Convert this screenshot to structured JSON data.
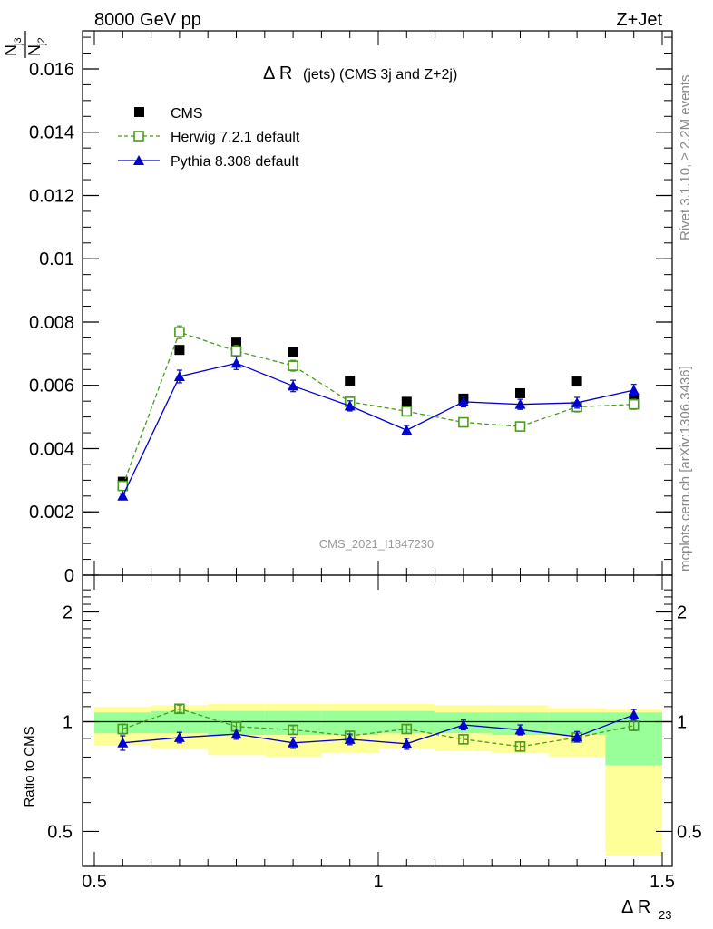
{
  "header": {
    "left": "8000 GeV pp",
    "right": "Z+Jet"
  },
  "side_text": {
    "rivet": "Rivet 3.1.10, ≥ 2.2M events",
    "mcplots": "mcplots.cern.ch [arXiv:1306.3436]"
  },
  "chart_data": [
    {
      "type": "scatter",
      "panel": "main",
      "title_main": "Δ R",
      "title_rest": "(jets) (CMS 3j and Z+2j)",
      "watermark": "CMS_2021_I1847230",
      "ylabel_num": "N",
      "ylabel_num_sub": "j3",
      "ylabel_den": "N",
      "ylabel_den_sub": "j2",
      "xlim": [
        0.5,
        1.5
      ],
      "ylim": [
        0,
        0.0172
      ],
      "yticks": [
        0,
        0.002,
        0.004,
        0.006,
        0.008,
        0.01,
        0.012,
        0.014,
        0.016
      ],
      "ytick_labels": [
        "0",
        "0.002",
        "0.004",
        "0.006",
        "0.008",
        "0.01",
        "0.012",
        "0.014",
        "0.016"
      ],
      "legend_position": "top-left",
      "x": [
        0.55,
        0.65,
        0.75,
        0.85,
        0.95,
        1.05,
        1.15,
        1.25,
        1.35,
        1.45
      ],
      "series": [
        {
          "name": "CMS",
          "color": "#000000",
          "marker": "square-filled",
          "line": "none",
          "values": [
            0.00295,
            0.00712,
            0.00735,
            0.00705,
            0.00615,
            0.00548,
            0.00558,
            0.00575,
            0.00612,
            0.00558
          ]
        },
        {
          "name": "Herwig 7.2.1 default",
          "color": "#4a9a1e",
          "marker": "square-open",
          "line": "dashed",
          "values": [
            0.00282,
            0.00768,
            0.00708,
            0.00662,
            0.00548,
            0.00518,
            0.00483,
            0.0047,
            0.00532,
            0.0054
          ],
          "errors": [
            8e-05,
            0.0002,
            0.00018,
            0.00017,
            0.00015,
            0.00015,
            0.00014,
            0.00014,
            0.00016,
            0.00016
          ]
        },
        {
          "name": "Pythia 8.308 default",
          "color": "#0000d0",
          "marker": "triangle-filled",
          "line": "solid",
          "values": [
            0.0025,
            0.00628,
            0.0067,
            0.00598,
            0.00535,
            0.00458,
            0.00548,
            0.0054,
            0.00545,
            0.00585
          ],
          "errors": [
            8e-05,
            0.0002,
            0.0002,
            0.00018,
            0.00016,
            0.00015,
            0.00016,
            0.00016,
            0.00017,
            0.00018
          ]
        }
      ]
    },
    {
      "type": "scatter",
      "panel": "ratio",
      "ylabel": "Ratio to CMS",
      "xlabel": "Δ R",
      "xlabel_sub": "23",
      "xlim": [
        0.5,
        1.5
      ],
      "ylim": [
        0.37,
        2.35
      ],
      "ytick_labels_left": [
        {
          "v": 0.5,
          "t": "0.5"
        },
        {
          "v": 1,
          "t": "1"
        },
        {
          "v": 2,
          "t": "2"
        }
      ],
      "ytick_labels_right": [
        {
          "v": 0.5,
          "t": "0.5"
        },
        {
          "v": 1,
          "t": "1"
        },
        {
          "v": 2,
          "t": "2"
        }
      ],
      "xtick_labels": [
        {
          "v": 0.5,
          "t": "0.5"
        },
        {
          "v": 1,
          "t": "1"
        },
        {
          "v": 1.5,
          "t": "1.5"
        }
      ],
      "reference_line": 1,
      "band_colors": {
        "inner": "#99ff99",
        "outer": "#ffff99"
      },
      "bins": [
        {
          "lo": 0.5,
          "hi": 0.6,
          "inner": [
            0.93,
            1.06
          ],
          "outer": [
            0.86,
            1.1
          ]
        },
        {
          "lo": 0.6,
          "hi": 0.7,
          "inner": [
            0.93,
            1.07
          ],
          "outer": [
            0.84,
            1.11
          ]
        },
        {
          "lo": 0.7,
          "hi": 0.8,
          "inner": [
            0.92,
            1.07
          ],
          "outer": [
            0.81,
            1.12
          ]
        },
        {
          "lo": 0.8,
          "hi": 0.9,
          "inner": [
            0.92,
            1.07
          ],
          "outer": [
            0.8,
            1.12
          ]
        },
        {
          "lo": 0.9,
          "hi": 1.0,
          "inner": [
            0.92,
            1.07
          ],
          "outer": [
            0.82,
            1.12
          ]
        },
        {
          "lo": 1.0,
          "hi": 1.1,
          "inner": [
            0.93,
            1.07
          ],
          "outer": [
            0.84,
            1.12
          ]
        },
        {
          "lo": 1.1,
          "hi": 1.2,
          "inner": [
            0.93,
            1.06
          ],
          "outer": [
            0.83,
            1.11
          ]
        },
        {
          "lo": 1.2,
          "hi": 1.3,
          "inner": [
            0.92,
            1.06
          ],
          "outer": [
            0.82,
            1.11
          ]
        },
        {
          "lo": 1.3,
          "hi": 1.4,
          "inner": [
            0.92,
            1.06
          ],
          "outer": [
            0.8,
            1.09
          ]
        },
        {
          "lo": 1.4,
          "hi": 1.5,
          "inner": [
            0.76,
            1.06
          ],
          "outer": [
            0.43,
            1.08
          ]
        }
      ],
      "x": [
        0.55,
        0.65,
        0.75,
        0.85,
        0.95,
        1.05,
        1.15,
        1.25,
        1.35,
        1.45
      ],
      "series": [
        {
          "name": "Herwig 7.2.1 default",
          "color": "#4a9a1e",
          "marker": "square-open",
          "line": "dashed",
          "values": [
            0.955,
            1.085,
            0.97,
            0.95,
            0.915,
            0.955,
            0.895,
            0.855,
            0.905,
            0.975
          ],
          "errors": [
            0.03,
            0.025,
            0.025,
            0.025,
            0.025,
            0.025,
            0.025,
            0.025,
            0.025,
            0.03
          ]
        },
        {
          "name": "Pythia 8.308 default",
          "color": "#0000d0",
          "marker": "triangle-filled",
          "line": "solid",
          "values": [
            0.875,
            0.905,
            0.925,
            0.875,
            0.895,
            0.87,
            0.98,
            0.95,
            0.91,
            1.045
          ],
          "errors": [
            0.04,
            0.03,
            0.03,
            0.03,
            0.03,
            0.03,
            0.03,
            0.03,
            0.03,
            0.035
          ]
        }
      ]
    }
  ]
}
